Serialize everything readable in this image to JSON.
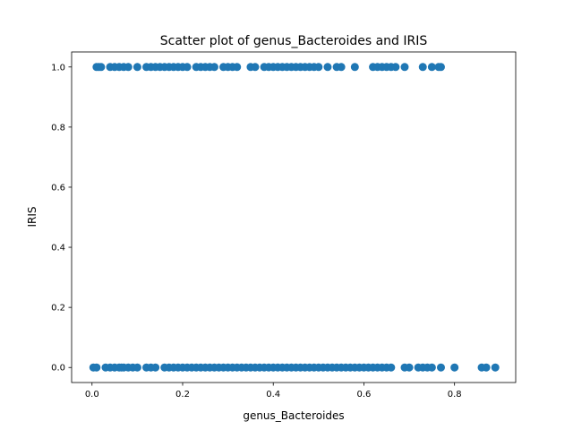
{
  "chart_data": {
    "type": "scatter",
    "title": "Scatter plot of genus_Bacteroides and IRIS",
    "xlabel": "genus_Bacteroides",
    "ylabel": "IRIS",
    "xlim": [
      -0.045,
      0.935
    ],
    "ylim": [
      -0.05,
      1.05
    ],
    "xticks": [
      0.0,
      0.2,
      0.4,
      0.6,
      0.8
    ],
    "xtick_labels": [
      "0.0",
      "0.2",
      "0.4",
      "0.6",
      "0.8"
    ],
    "yticks": [
      0.0,
      0.2,
      0.4,
      0.6,
      0.8,
      1.0
    ],
    "ytick_labels": [
      "0.0",
      "0.2",
      "0.4",
      "0.6",
      "0.8",
      "1.0"
    ],
    "grid": false,
    "legend": "none",
    "marker_color": "#1f77b4",
    "x": [
      0.01,
      0.015,
      0.02,
      0.04,
      0.05,
      0.06,
      0.07,
      0.08,
      0.1,
      0.12,
      0.13,
      0.14,
      0.15,
      0.16,
      0.17,
      0.18,
      0.19,
      0.2,
      0.21,
      0.23,
      0.24,
      0.25,
      0.26,
      0.27,
      0.29,
      0.3,
      0.31,
      0.32,
      0.35,
      0.36,
      0.38,
      0.39,
      0.4,
      0.41,
      0.42,
      0.43,
      0.44,
      0.45,
      0.46,
      0.47,
      0.48,
      0.49,
      0.5,
      0.52,
      0.54,
      0.55,
      0.58,
      0.62,
      0.63,
      0.64,
      0.65,
      0.66,
      0.67,
      0.69,
      0.73,
      0.75,
      0.765,
      0.77,
      0.003,
      0.01,
      0.03,
      0.04,
      0.05,
      0.06,
      0.065,
      0.07,
      0.08,
      0.09,
      0.1,
      0.12,
      0.13,
      0.14,
      0.16,
      0.17,
      0.18,
      0.19,
      0.2,
      0.21,
      0.22,
      0.23,
      0.24,
      0.25,
      0.26,
      0.27,
      0.28,
      0.29,
      0.3,
      0.31,
      0.32,
      0.33,
      0.34,
      0.35,
      0.36,
      0.37,
      0.38,
      0.39,
      0.4,
      0.41,
      0.42,
      0.43,
      0.44,
      0.45,
      0.46,
      0.47,
      0.48,
      0.49,
      0.5,
      0.51,
      0.52,
      0.53,
      0.54,
      0.55,
      0.56,
      0.57,
      0.58,
      0.59,
      0.6,
      0.61,
      0.62,
      0.63,
      0.64,
      0.65,
      0.66,
      0.69,
      0.7,
      0.72,
      0.73,
      0.74,
      0.75,
      0.77,
      0.8,
      0.86,
      0.87,
      0.89
    ],
    "y": [
      1,
      1,
      1,
      1,
      1,
      1,
      1,
      1,
      1,
      1,
      1,
      1,
      1,
      1,
      1,
      1,
      1,
      1,
      1,
      1,
      1,
      1,
      1,
      1,
      1,
      1,
      1,
      1,
      1,
      1,
      1,
      1,
      1,
      1,
      1,
      1,
      1,
      1,
      1,
      1,
      1,
      1,
      1,
      1,
      1,
      1,
      1,
      1,
      1,
      1,
      1,
      1,
      1,
      1,
      1,
      1,
      1,
      1,
      0,
      0,
      0,
      0,
      0,
      0,
      0,
      0,
      0,
      0,
      0,
      0,
      0,
      0,
      0,
      0,
      0,
      0,
      0,
      0,
      0,
      0,
      0,
      0,
      0,
      0,
      0,
      0,
      0,
      0,
      0,
      0,
      0,
      0,
      0,
      0,
      0,
      0,
      0,
      0,
      0,
      0,
      0,
      0,
      0,
      0,
      0,
      0,
      0,
      0,
      0,
      0,
      0,
      0,
      0,
      0,
      0,
      0,
      0,
      0,
      0,
      0,
      0,
      0,
      0,
      0,
      0,
      0,
      0,
      0,
      0,
      0,
      0,
      0,
      0,
      0
    ]
  }
}
